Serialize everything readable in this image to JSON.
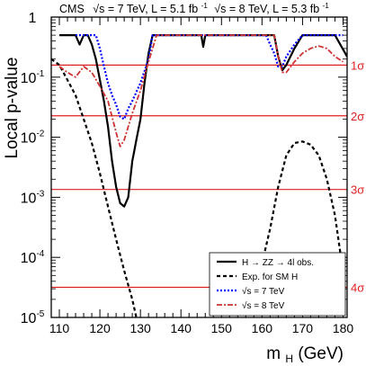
{
  "chart_data": {
    "type": "line",
    "header": {
      "experiment": "CMS",
      "run7": "√s = 7 TeV, L = 5.1 fb",
      "run7_sup": "-1",
      "run8": "√s = 8 TeV, L = 5.3 fb",
      "run8_sup": "-1"
    },
    "xlabel_main": "m",
    "xlabel_sub": "H",
    "xlabel_unit": " (GeV)",
    "ylabel": "Local p-value",
    "x_scale": "linear",
    "y_scale": "log",
    "xlim": [
      108,
      181
    ],
    "ylim": [
      1e-05,
      1
    ],
    "x_ticks": [
      "110",
      "120",
      "130",
      "140",
      "150",
      "160",
      "170",
      "180"
    ],
    "y_ticks": [
      {
        "base": "1",
        "exp": ""
      },
      {
        "base": "10",
        "exp": "-1"
      },
      {
        "base": "10",
        "exp": "-2"
      },
      {
        "base": "10",
        "exp": "-3"
      },
      {
        "base": "10",
        "exp": "-4"
      },
      {
        "base": "10",
        "exp": "-5"
      }
    ],
    "significance_lines": [
      {
        "label": "1σ",
        "p": 0.1587
      },
      {
        "label": "2σ",
        "p": 0.02275
      },
      {
        "label": "3σ",
        "p": 0.00135
      },
      {
        "label": "4σ",
        "p": 3.17e-05
      }
    ],
    "legend_position": "bottom-right",
    "series": [
      {
        "name": "H → ZZ → 4l obs.",
        "color": "#000000",
        "style": "solid",
        "points": [
          [
            110,
            0.5
          ],
          [
            114,
            0.5
          ],
          [
            115,
            0.35
          ],
          [
            116,
            0.5
          ],
          [
            117,
            0.5
          ],
          [
            118,
            0.35
          ],
          [
            119,
            0.2
          ],
          [
            120,
            0.09
          ],
          [
            121,
            0.04
          ],
          [
            122,
            0.015
          ],
          [
            123,
            0.004
          ],
          [
            124,
            0.0015
          ],
          [
            125,
            0.0008
          ],
          [
            126,
            0.0007
          ],
          [
            127,
            0.001
          ],
          [
            128,
            0.004
          ],
          [
            128.5,
            0.006
          ],
          [
            129,
            0.009
          ],
          [
            130,
            0.02
          ],
          [
            131,
            0.08
          ],
          [
            132,
            0.25
          ],
          [
            133,
            0.5
          ],
          [
            145,
            0.5
          ],
          [
            145.5,
            0.32
          ],
          [
            146,
            0.5
          ],
          [
            163,
            0.5
          ],
          [
            164,
            0.22
          ],
          [
            165,
            0.13
          ],
          [
            166,
            0.16
          ],
          [
            168,
            0.3
          ],
          [
            170,
            0.5
          ],
          [
            178,
            0.5
          ],
          [
            181,
            0.22
          ]
        ]
      },
      {
        "name": "Exp. for SM H",
        "color": "#000000",
        "style": "dashed",
        "segments": [
          [
            [
              108,
              0.2
            ],
            [
              110,
              0.16
            ],
            [
              112,
              0.09
            ],
            [
              114,
              0.05
            ],
            [
              116,
              0.02
            ],
            [
              118,
              0.008
            ],
            [
              120,
              0.0025
            ],
            [
              122,
              0.0007
            ],
            [
              124,
              0.0002
            ],
            [
              126,
              6e-05
            ],
            [
              128,
              2e-05
            ],
            [
              129,
              1e-05
            ]
          ],
          [
            [
              160,
              8e-05
            ],
            [
              162,
              0.0003
            ],
            [
              164,
              0.0015
            ],
            [
              166,
              0.005
            ],
            [
              168,
              0.008
            ],
            [
              170,
              0.0085
            ],
            [
              172,
              0.0075
            ],
            [
              174,
              0.005
            ],
            [
              176,
              0.002
            ],
            [
              178,
              0.0005
            ],
            [
              179.5,
              0.0001
            ]
          ]
        ]
      },
      {
        "name": "√s = 7 TeV",
        "color": "#0000ff",
        "style": "dotted",
        "points": [
          [
            114,
            0.5
          ],
          [
            119,
            0.5
          ],
          [
            120,
            0.3
          ],
          [
            121,
            0.15
          ],
          [
            122,
            0.08
          ],
          [
            123,
            0.05
          ],
          [
            124,
            0.035
          ],
          [
            125,
            0.022
          ],
          [
            126,
            0.02
          ],
          [
            127,
            0.03
          ],
          [
            128,
            0.04
          ],
          [
            130,
            0.08
          ],
          [
            132,
            0.2
          ],
          [
            133,
            0.5
          ],
          [
            161,
            0.5
          ],
          [
            162,
            0.35
          ],
          [
            163,
            0.25
          ],
          [
            164,
            0.15
          ],
          [
            165,
            0.15
          ],
          [
            166,
            0.22
          ],
          [
            168,
            0.35
          ],
          [
            170,
            0.5
          ],
          [
            180,
            0.5
          ]
        ]
      },
      {
        "name": "√s = 8 TeV",
        "color": "#cc3333",
        "style": "dashdot",
        "points": [
          [
            110,
            0.15
          ],
          [
            112,
            0.12
          ],
          [
            114,
            0.1
          ],
          [
            116,
            0.15
          ],
          [
            118,
            0.12
          ],
          [
            120,
            0.07
          ],
          [
            122,
            0.04
          ],
          [
            124,
            0.012
          ],
          [
            125,
            0.007
          ],
          [
            126,
            0.009
          ],
          [
            128,
            0.025
          ],
          [
            130,
            0.06
          ],
          [
            132,
            0.18
          ],
          [
            134,
            0.5
          ],
          [
            163,
            0.5
          ],
          [
            164,
            0.22
          ],
          [
            165,
            0.12
          ],
          [
            166,
            0.12
          ],
          [
            168,
            0.18
          ],
          [
            170,
            0.25
          ],
          [
            172,
            0.3
          ],
          [
            174,
            0.33
          ],
          [
            176,
            0.3
          ],
          [
            178,
            0.22
          ],
          [
            180,
            0.18
          ]
        ]
      }
    ]
  }
}
